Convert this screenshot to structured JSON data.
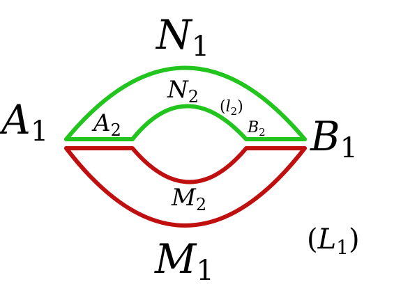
{
  "colors": {
    "upper_curves": "#22c41e",
    "lower_curves": "#c00f0f",
    "text": "#000000",
    "background": "#ffffff"
  },
  "labels": {
    "N1": {
      "main": "N",
      "sub": "1"
    },
    "N2": {
      "main": "N",
      "sub": "2"
    },
    "l2": {
      "open": "(",
      "main": "l",
      "sub": "2",
      "close": ")"
    },
    "A1": {
      "main": "A",
      "sub": "1"
    },
    "A2": {
      "main": "A",
      "sub": "2"
    },
    "B1": {
      "main": "B",
      "sub": "1"
    },
    "B2": {
      "main": "B",
      "sub": "2"
    },
    "M1": {
      "main": "M",
      "sub": "1"
    },
    "M2": {
      "main": "M",
      "sub": "2"
    },
    "L1": {
      "open": "(",
      "main": "L",
      "sub": "1",
      "close": ")"
    }
  }
}
